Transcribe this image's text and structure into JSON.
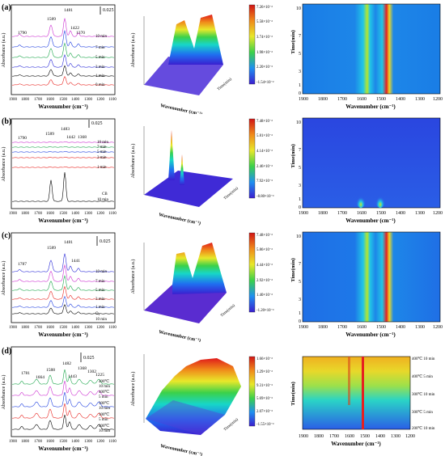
{
  "panels": [
    {
      "label": "(a)",
      "scale": "0.025",
      "peaks": [
        "1790",
        "1589",
        "1481",
        "1422",
        "1370"
      ],
      "traces": [
        "10 min",
        "7 min",
        "5 min",
        "3 min",
        "1 min",
        "0 min"
      ],
      "x_ticks": [
        "1900",
        "1800",
        "1700",
        "1600",
        "1500",
        "1400",
        "1300",
        "1200",
        "1100"
      ],
      "x_label": "Wavenumber (cm⁻¹)",
      "y_label": "Absorbance (a.u.)",
      "colorbar": [
        "7.26×10⁻²",
        "5.58×10⁻²",
        "3.74×10⁻²",
        "1.98×10⁻²",
        "2.20×10⁻³",
        "-1.54×10⁻²"
      ],
      "hm_y_ticks": [
        "10",
        "7",
        "5",
        "3",
        "1",
        "0"
      ],
      "hm_y_label": "Time(min)",
      "hm_x_ticks": [
        "1900",
        "1800",
        "1700",
        "1600",
        "1500",
        "1400",
        "1300",
        "1200"
      ],
      "hm_x_label": "Wavenumber (cm⁻¹)"
    },
    {
      "label": "(b)",
      "scale": "0.025",
      "peaks": [
        "1790",
        "1589",
        "1483",
        "1442",
        "1368"
      ],
      "traces": [
        "10 min",
        "7 min",
        "5 min",
        "3 min",
        "1 min",
        "CB",
        "10 min"
      ],
      "x_ticks": [
        "1900",
        "1800",
        "1700",
        "1600",
        "1500",
        "1400",
        "1300",
        "1200",
        "1100"
      ],
      "x_label": "Wavenumber (cm⁻¹)",
      "y_label": "Absorbance (a.u.)",
      "colorbar": [
        "7.48×10⁻²",
        "5.81×10⁻²",
        "4.14×10⁻²",
        "2.46×10⁻²",
        "7.92×10⁻³",
        "-8.80×10⁻³"
      ],
      "hm_y_ticks": [
        "10",
        "7",
        "5",
        "3",
        "1",
        "0"
      ],
      "hm_y_label": "Time(min)",
      "hm_x_ticks": [
        "1900",
        "1800",
        "1700",
        "1600",
        "1500",
        "1400",
        "1300",
        "1200"
      ],
      "hm_x_label": "Wavenumber (cm⁻¹)"
    },
    {
      "label": "(c)",
      "scale": "0.025",
      "peaks": [
        "1787",
        "1589",
        "1481",
        "1441"
      ],
      "traces": [
        "10 min",
        "7 min",
        "5 min",
        "3 min",
        "1 min",
        "O₂",
        "10 min"
      ],
      "x_ticks": [
        "1900",
        "1800",
        "1700",
        "1600",
        "1500",
        "1400",
        "1300",
        "1200",
        "1100"
      ],
      "x_label": "Wavenumber (cm⁻¹)",
      "y_label": "Absorbance (a.u.)",
      "colorbar": [
        "7.48×10⁻²",
        "5.86×10⁻²",
        "4.44×10⁻²",
        "2.92×10⁻²",
        "1.40×10⁻²",
        "-1.20×10⁻³"
      ],
      "hm_y_ticks": [
        "10",
        "7",
        "5",
        "3",
        "1",
        "0"
      ],
      "hm_y_label": "Time(min)",
      "hm_x_ticks": [
        "1900",
        "1800",
        "1700",
        "1600",
        "1500",
        "1400",
        "1300",
        "1200"
      ],
      "hm_x_label": "Wavenumber (cm⁻¹)"
    },
    {
      "label": "(d)",
      "scale": "0.025",
      "peaks": [
        "1781",
        "1664",
        "1588",
        "1482",
        "1443",
        "1368",
        "1302",
        "1225"
      ],
      "traces": [
        "400℃",
        "10 min",
        "400℃",
        "5 min",
        "300℃",
        "10 min",
        "300℃",
        "5 min",
        "200℃",
        "10 min"
      ],
      "x_ticks": [
        "1900",
        "1800",
        "1700",
        "1600",
        "1500",
        "1400",
        "1300",
        "1200",
        "1100"
      ],
      "x_label": "Wavenumber (cm⁻¹)",
      "y_label": "Absorbance (a.u.)",
      "colorbar": [
        "1.66×10⁻²",
        "1.29×10⁻²",
        "9.31×10⁻³",
        "5.69×10⁻³",
        "2.07×10⁻³",
        "-1.55×10⁻³"
      ],
      "hm_y_ticks": [
        "400℃ 10 min",
        "400℃ 5 min",
        "300℃ 10 min",
        "300℃ 5 min",
        "200℃ 10 min"
      ],
      "hm_y_label": "Time(min)",
      "hm_x_ticks": [
        "1900",
        "1800",
        "1700",
        "1600",
        "1500",
        "1400",
        "1300",
        "1200"
      ],
      "hm_x_label": "Wavenumber (cm⁻¹)"
    }
  ],
  "trace_colors": [
    "#000000",
    "#e8231f",
    "#1f3fe0",
    "#1aa64a",
    "#cc2fd1",
    "#2b2bd8",
    "#111111"
  ],
  "surface_axis_labels": {
    "wavenumber": "Wavenumber (cm⁻¹)",
    "time": "Time(min)",
    "absorbance": "Absorbance (a.u.)"
  }
}
